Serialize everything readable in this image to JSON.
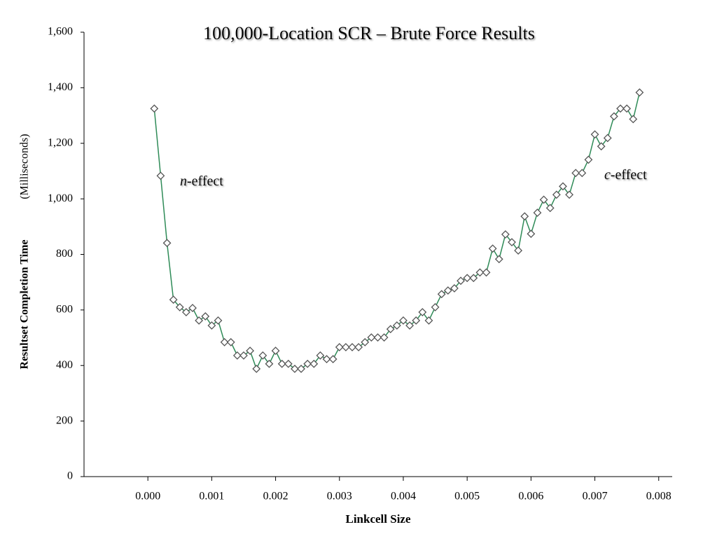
{
  "chart_data": {
    "type": "line",
    "title": "100,000-Location SCR – Brute Force Results",
    "x_label": "Linkcell Size",
    "y_label": "Resultset Completion Time",
    "y_label_unit": "(Milliseconds)",
    "annotations": [
      {
        "variable": "n",
        "text": "-effect"
      },
      {
        "variable": "c",
        "text": "-effect"
      }
    ],
    "x": [
      0.0001,
      0.0002,
      0.0003,
      0.0004,
      0.0005,
      0.0006,
      0.0007,
      0.0008,
      0.0009,
      0.001,
      0.0011,
      0.0012,
      0.0013,
      0.0014,
      0.0015,
      0.0016,
      0.0017,
      0.0018,
      0.0019,
      0.002,
      0.0021,
      0.0022,
      0.0023,
      0.0024,
      0.0025,
      0.0026,
      0.0027,
      0.0028,
      0.0029,
      0.003,
      0.0031,
      0.0032,
      0.0033,
      0.0034,
      0.0035,
      0.0036,
      0.0037,
      0.0038,
      0.0039,
      0.004,
      0.0041,
      0.0042,
      0.0043,
      0.0044,
      0.0045,
      0.0046,
      0.0047,
      0.0048,
      0.0049,
      0.005,
      0.0051,
      0.0052,
      0.0053,
      0.0054,
      0.0055,
      0.0056,
      0.0057,
      0.0058,
      0.0059,
      0.006,
      0.0061,
      0.0062,
      0.0063,
      0.0064,
      0.0065,
      0.0066,
      0.0067,
      0.0068,
      0.0069,
      0.007,
      0.0071,
      0.0072,
      0.0073,
      0.0074,
      0.0075,
      0.0076,
      0.0077
    ],
    "series": [
      {
        "color": "#2e8b57",
        "marker_color": "#555555",
        "values": [
          1325,
          1083,
          841,
          637,
          610,
          592,
          607,
          562,
          577,
          544,
          562,
          484,
          484,
          436,
          436,
          453,
          388,
          436,
          406,
          453,
          406,
          406,
          388,
          388,
          406,
          406,
          436,
          423,
          423,
          466,
          466,
          466,
          466,
          484,
          501,
          501,
          501,
          531,
          544,
          562,
          544,
          562,
          592,
          562,
          610,
          657,
          670,
          678,
          705,
          715,
          715,
          735,
          735,
          821,
          783,
          872,
          844,
          814,
          937,
          874,
          950,
          997,
          967,
          1015,
          1045,
          1015,
          1093,
          1093,
          1141,
          1232,
          1189,
          1219,
          1297,
          1325,
          1325,
          1287,
          1383
        ]
      }
    ],
    "xlim": [
      -0.001,
      0.0082
    ],
    "ylim": [
      0,
      1600
    ],
    "xticks": [
      {
        "value": 0,
        "label": "0.000"
      },
      {
        "value": 0.001,
        "label": "0.001"
      },
      {
        "value": 0.002,
        "label": "0.002"
      },
      {
        "value": 0.003,
        "label": "0.003"
      },
      {
        "value": 0.004,
        "label": "0.004"
      },
      {
        "value": 0.005,
        "label": "0.005"
      },
      {
        "value": 0.006,
        "label": "0.006"
      },
      {
        "value": 0.007,
        "label": "0.007"
      },
      {
        "value": 0.008,
        "label": "0.008"
      }
    ],
    "yticks": [
      0,
      200,
      400,
      600,
      800,
      {
        "value": 1000,
        "label": "1,000"
      },
      {
        "value": 1200,
        "label": "1,200"
      },
      {
        "value": 1400,
        "label": "1,400"
      },
      {
        "value": 1600,
        "label": "1,600"
      }
    ],
    "grid": false
  }
}
